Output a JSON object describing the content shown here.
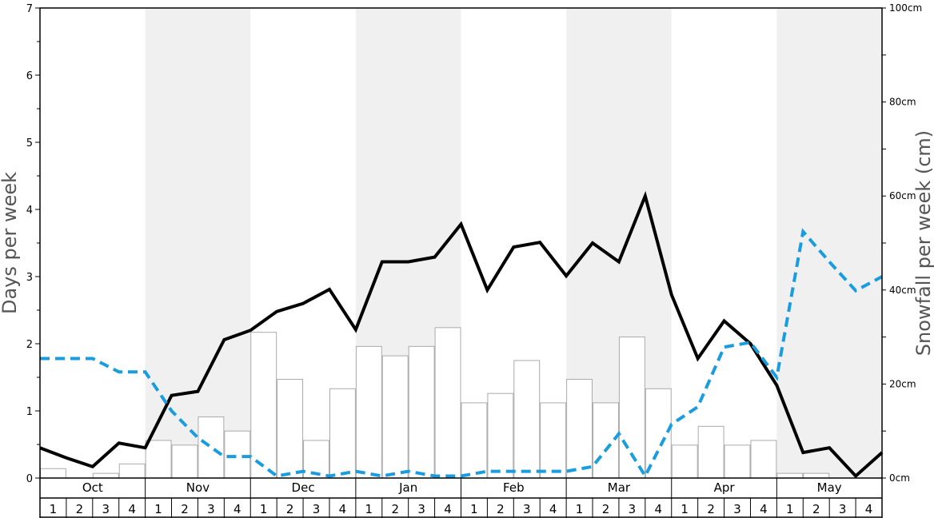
{
  "chart_data": {
    "type": "bar",
    "ylabel_left": "Days per week",
    "ylabel_right": "Snowfall per week (cm)",
    "ylim_left": [
      0,
      7
    ],
    "ylim_right": [
      0,
      100
    ],
    "left_ticks": [
      "0",
      "1",
      "2",
      "3",
      "4",
      "5",
      "6",
      "7"
    ],
    "right_ticks": [
      "0cm",
      "20cm",
      "40cm",
      "60cm",
      "80cm",
      "100cm"
    ],
    "months": [
      "Oct",
      "Nov",
      "Dec",
      "Jan",
      "Feb",
      "Mar",
      "Apr",
      "May"
    ],
    "weeks": [
      "1",
      "2",
      "3",
      "4"
    ],
    "shaded_months": [
      "Nov",
      "Jan",
      "Mar",
      "May"
    ],
    "colors": {
      "shade": "#f0f0f0",
      "bar_fill": "#ffffff",
      "bar_stroke": "#aaaaaa",
      "solid_line": "#000000",
      "dashed_line": "#1a9de0"
    },
    "series": [
      {
        "kind": "bar",
        "axis": "right",
        "unit": "cm",
        "values": [
          2,
          0,
          1,
          3,
          8,
          7,
          13,
          10,
          31,
          21,
          8,
          19,
          28,
          26,
          28,
          32,
          16,
          18,
          25,
          16,
          21,
          16,
          30,
          19,
          7,
          11,
          7,
          8,
          1,
          1,
          0,
          0
        ]
      },
      {
        "kind": "line",
        "style": "solid",
        "axis": "left",
        "values": [
          0.45,
          0.3,
          0.17,
          0.52,
          0.45,
          1.23,
          1.29,
          2.06,
          2.2,
          2.48,
          2.6,
          2.81,
          2.21,
          3.22,
          3.22,
          3.29,
          3.78,
          2.8,
          3.44,
          3.51,
          3.01,
          3.5,
          3.22,
          4.2,
          2.73,
          1.78,
          2.34,
          2.0,
          1.38,
          0.38,
          0.45,
          0.03,
          0.38
        ]
      },
      {
        "kind": "line",
        "style": "dashed",
        "axis": "left",
        "values": [
          1.78,
          1.78,
          1.78,
          1.58,
          1.58,
          1.0,
          0.6,
          0.32,
          0.32,
          0.03,
          0.1,
          0.03,
          0.1,
          0.03,
          0.1,
          0.03,
          0.03,
          0.1,
          0.1,
          0.1,
          0.1,
          0.17,
          0.66,
          0.03,
          0.8,
          1.06,
          1.95,
          2.02,
          1.5,
          3.67,
          3.22,
          2.79,
          3.0
        ]
      }
    ]
  }
}
